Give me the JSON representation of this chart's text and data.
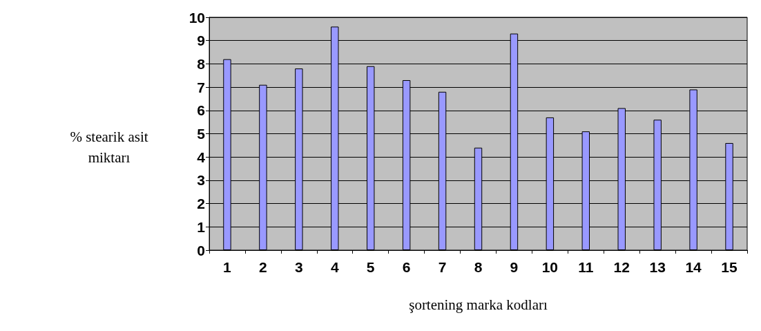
{
  "chart_data": {
    "type": "bar",
    "xlabel": "şortening marka kodları",
    "ylabel": "% stearik asit\nmiktarı",
    "categories": [
      "1",
      "2",
      "3",
      "4",
      "5",
      "6",
      "7",
      "8",
      "9",
      "10",
      "11",
      "12",
      "13",
      "14",
      "15"
    ],
    "values": [
      8.2,
      7.1,
      7.8,
      9.6,
      7.9,
      7.3,
      6.8,
      4.4,
      9.3,
      5.7,
      5.1,
      6.1,
      5.6,
      6.9,
      4.6
    ],
    "color": "#9999ff",
    "ylim": [
      0,
      10
    ],
    "yticks": [
      0,
      1,
      2,
      3,
      4,
      5,
      6,
      7,
      8,
      9,
      10
    ],
    "grid": "y"
  }
}
